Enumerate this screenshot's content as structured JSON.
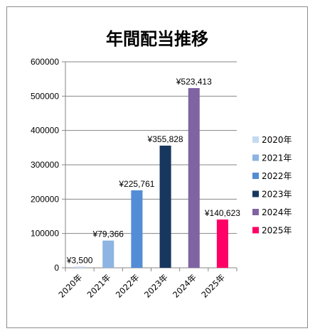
{
  "chart_data": {
    "type": "bar",
    "title": "年間配当推移",
    "categories": [
      "2020年",
      "2021年",
      "2022年",
      "2023年",
      "2024年",
      "2025年"
    ],
    "values": [
      3500,
      79366,
      225761,
      355828,
      523413,
      140623
    ],
    "data_labels": [
      "¥3,500",
      "¥79,366",
      "¥225,761",
      "¥355,828",
      "¥523,413",
      "¥140,623"
    ],
    "colors": [
      "#c5d9f1",
      "#8db4e2",
      "#538dd5",
      "#17375e",
      "#8064a2",
      "#ff0066"
    ],
    "ylim": [
      0,
      600000
    ],
    "yticks": [
      0,
      100000,
      200000,
      300000,
      400000,
      500000,
      600000
    ],
    "ytick_labels": [
      "0",
      "100000",
      "200000",
      "300000",
      "400000",
      "500000",
      "600000"
    ],
    "grid": true,
    "legend_position": "right",
    "xlabel": "",
    "ylabel": ""
  }
}
